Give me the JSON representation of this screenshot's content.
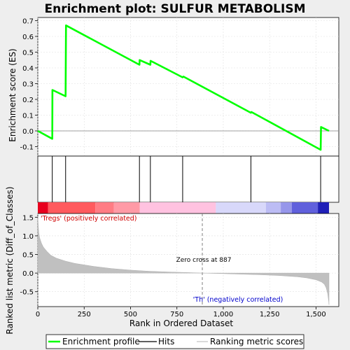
{
  "chart_data": {
    "type": "line",
    "title": "Enrichment plot: SULFUR METABOLISM",
    "es_panel": {
      "ylabel": "Enrichment score (ES)",
      "ylim": [
        -0.16,
        0.72
      ],
      "yticks": [
        -0.1,
        0.0,
        0.1,
        0.2,
        0.3,
        0.4,
        0.5,
        0.6,
        0.7
      ],
      "ytick_labels": [
        "-0.1",
        "0.0",
        "0.1",
        "0.2",
        "0.3",
        "0.4",
        "0.5",
        "0.6",
        "0.7"
      ],
      "grid": true,
      "line_color": "#00ff00",
      "enrichment_profile": {
        "x": [
          0,
          78,
          79,
          150,
          151,
          152,
          548,
          549,
          607,
          608,
          781,
          785,
          1149,
          1152,
          1525,
          1527,
          1570
        ],
        "y": [
          0.0,
          -0.05,
          0.26,
          0.22,
          0.45,
          0.67,
          0.42,
          0.45,
          0.42,
          0.445,
          0.34,
          0.345,
          0.115,
          0.12,
          -0.12,
          0.025,
          0.0
        ]
      }
    },
    "hits": {
      "positions": [
        78,
        150,
        548,
        607,
        781,
        1149,
        1525
      ]
    },
    "rank_colorbar": {
      "segments": [
        {
          "from": 0,
          "to": 55,
          "color": "#e8001e"
        },
        {
          "from": 55,
          "to": 310,
          "color": "#ff5a5e"
        },
        {
          "from": 310,
          "to": 410,
          "color": "#ff7c84"
        },
        {
          "from": 410,
          "to": 550,
          "color": "#ff9aa6"
        },
        {
          "from": 550,
          "to": 960,
          "color": "#ffc2e0"
        },
        {
          "from": 960,
          "to": 1230,
          "color": "#d8d8fa"
        },
        {
          "from": 1230,
          "to": 1310,
          "color": "#bcbcf4"
        },
        {
          "from": 1310,
          "to": 1370,
          "color": "#9696ea"
        },
        {
          "from": 1370,
          "to": 1510,
          "color": "#6060dc"
        },
        {
          "from": 1510,
          "to": 1570,
          "color": "#2020b8"
        }
      ]
    },
    "metric_panel": {
      "ylabel": "Ranked list metric (Diff_of_Classes)",
      "xlabel": "Rank in Ordered Dataset",
      "ylim": [
        -0.9,
        1.6
      ],
      "yticks": [
        -0.5,
        0.0,
        0.5,
        1.0,
        1.5
      ],
      "ytick_labels": [
        "-0.5",
        "0.0",
        "0.5",
        "1.0",
        "1.5"
      ],
      "grid": true,
      "fill_color": "#c0c0c0",
      "ranked_metric": {
        "x": [
          0,
          5,
          10,
          20,
          30,
          50,
          70,
          100,
          150,
          200,
          300,
          400,
          500,
          600,
          700,
          800,
          887,
          1000,
          1100,
          1200,
          1300,
          1400,
          1450,
          1500,
          1530,
          1545,
          1555,
          1563,
          1568,
          1570
        ],
        "y": [
          1.5,
          1.1,
          0.95,
          0.8,
          0.7,
          0.58,
          0.48,
          0.4,
          0.32,
          0.26,
          0.18,
          0.12,
          0.08,
          0.05,
          0.03,
          0.015,
          0.0,
          -0.015,
          -0.03,
          -0.045,
          -0.065,
          -0.1,
          -0.13,
          -0.18,
          -0.24,
          -0.3,
          -0.4,
          -0.55,
          -0.75,
          -0.85
        ]
      },
      "zero_cross_rank": 887,
      "zero_cross_label": "Zero cross at 887",
      "pos_label": "'Tregs' (positively correlated)",
      "neg_label": "'Th' (negatively correlated)"
    },
    "xlim": [
      0,
      1570
    ],
    "xticks": [
      0,
      250,
      500,
      750,
      1000,
      1250,
      1500
    ],
    "xtick_labels": [
      "0",
      "250",
      "500",
      "750",
      "1,000",
      "1,250",
      "1,500"
    ],
    "legend": {
      "placement": "bottom",
      "entries": [
        {
          "label": "Enrichment profile",
          "color": "#00ff00"
        },
        {
          "label": "Hits",
          "color": "#000000"
        },
        {
          "label": "Ranking metric scores",
          "color": "#c0c0c0"
        }
      ]
    }
  }
}
